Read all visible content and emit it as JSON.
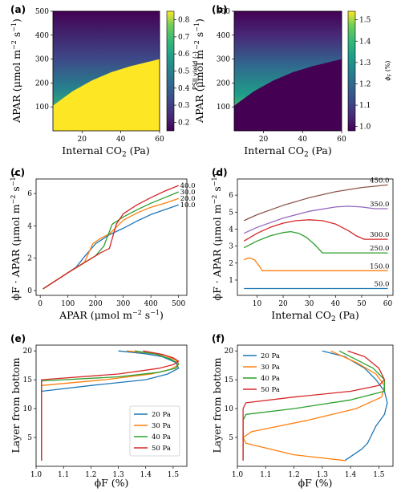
{
  "colors": {
    "c1": "#1f77b4",
    "c2": "#ff7f0e",
    "c3": "#2ca02c",
    "c4": "#d62728",
    "c5": "#9467bd",
    "c6": "#8c564b"
  },
  "chart_data": [
    {
      "id": "a",
      "panel_label": "(a)",
      "type": "heatmap",
      "xlabel": "Internal CO$_2$ (Pa)",
      "xlabel_text": "Internal CO",
      "xlabel_sub": "2",
      "xlabel_tail": " (Pa)",
      "ylabel_text": "APAR (μmol m",
      "ylim": [
        0,
        500
      ],
      "xlim": [
        5,
        60
      ],
      "xticks": [
        20,
        40,
        60
      ],
      "yticks": [
        100,
        200,
        300,
        400,
        500
      ],
      "colorbar": {
        "label": "PSII yield (-)",
        "min": 0.15,
        "max": 0.85,
        "ticks": [
          0.2,
          0.3,
          0.4,
          0.5,
          0.6,
          0.7,
          0.8
        ]
      },
      "boundary": {
        "co2": [
          5,
          15,
          25,
          35,
          45,
          60
        ],
        "apar": [
          105,
          165,
          210,
          245,
          270,
          300
        ]
      }
    },
    {
      "id": "b",
      "panel_label": "(b)",
      "type": "heatmap",
      "xlabel_text": "Internal CO",
      "xlabel_sub": "2",
      "xlabel_tail": " (Pa)",
      "ylabel_text": "APAR (μmol m",
      "ylim": [
        0,
        500
      ],
      "xlim": [
        5,
        60
      ],
      "xticks": [
        20,
        40,
        60
      ],
      "yticks": [
        100,
        200,
        300,
        400,
        500
      ],
      "colorbar": {
        "label": "ϕF (%)",
        "min": 0.98,
        "max": 1.54,
        "ticks": [
          1.0,
          1.1,
          1.2,
          1.3,
          1.4,
          1.5
        ]
      },
      "boundary": {
        "co2": [
          5,
          15,
          25,
          35,
          45,
          60
        ],
        "apar": [
          105,
          165,
          210,
          245,
          270,
          300
        ]
      }
    },
    {
      "id": "c",
      "panel_label": "(c)",
      "type": "line",
      "xlabel_text": "APAR (μmol m",
      "ylabel_text": "ϕF · APAR (μmol m",
      "xlim": [
        -15,
        530
      ],
      "ylim": [
        -0.3,
        6.9
      ],
      "xticks": [
        0,
        100,
        200,
        300,
        400,
        500
      ],
      "yticks": [
        0,
        2,
        4,
        6
      ],
      "series": [
        {
          "name": "10.0",
          "x": [
            10,
            100,
            130,
            160,
            200,
            250,
            300,
            350,
            400,
            450,
            500
          ],
          "y": [
            0.1,
            1.1,
            1.45,
            2.1,
            2.9,
            3.45,
            3.85,
            4.3,
            4.7,
            5.0,
            5.3
          ]
        },
        {
          "name": "20.0",
          "x": [
            10,
            100,
            160,
            190,
            220,
            250,
            300,
            350,
            400,
            450,
            500
          ],
          "y": [
            0.1,
            1.1,
            1.75,
            2.9,
            3.25,
            3.5,
            4.35,
            4.8,
            5.15,
            5.4,
            5.7
          ]
        },
        {
          "name": "30.0",
          "x": [
            10,
            100,
            200,
            230,
            260,
            300,
            350,
            400,
            450,
            500
          ],
          "y": [
            0.1,
            1.1,
            2.15,
            2.75,
            4.1,
            4.55,
            5.0,
            5.4,
            5.75,
            6.1
          ]
        },
        {
          "name": "40.0",
          "x": [
            10,
            100,
            220,
            250,
            275,
            300,
            350,
            400,
            450,
            500
          ],
          "y": [
            0.1,
            1.1,
            2.35,
            2.6,
            4.1,
            4.75,
            5.3,
            5.75,
            6.15,
            6.5
          ]
        }
      ]
    },
    {
      "id": "d",
      "panel_label": "(d)",
      "type": "line",
      "xlabel_text": "Internal CO",
      "xlabel_sub": "2",
      "xlabel_tail": " (Pa)",
      "ylabel_text": "ϕF · APAR (μmol m",
      "xlim": [
        2.5,
        62
      ],
      "ylim": [
        0.1,
        6.95
      ],
      "xticks": [
        10,
        20,
        30,
        40,
        50,
        60
      ],
      "yticks": [
        1,
        2,
        3,
        4,
        5,
        6
      ],
      "series": [
        {
          "name": "50.0",
          "x": [
            5,
            60
          ],
          "y": [
            0.5,
            0.5
          ]
        },
        {
          "name": "150.0",
          "x": [
            5,
            7,
            9,
            10,
            11,
            12,
            60
          ],
          "y": [
            2.2,
            2.3,
            2.2,
            2.0,
            1.8,
            1.55,
            1.55
          ]
        },
        {
          "name": "250.0",
          "x": [
            5,
            10,
            15,
            20,
            23,
            26,
            29,
            32,
            35,
            40,
            50,
            60
          ],
          "y": [
            2.9,
            3.3,
            3.6,
            3.8,
            3.85,
            3.75,
            3.5,
            3.1,
            2.6,
            2.6,
            2.6,
            2.6
          ]
        },
        {
          "name": "300.0",
          "x": [
            5,
            10,
            15,
            20,
            25,
            30,
            35,
            40,
            45,
            48,
            51,
            55,
            60
          ],
          "y": [
            3.3,
            3.75,
            4.1,
            4.35,
            4.5,
            4.55,
            4.5,
            4.3,
            3.9,
            3.6,
            3.4,
            3.4,
            3.4
          ]
        },
        {
          "name": "350.0",
          "x": [
            5,
            10,
            20,
            30,
            40,
            45,
            50,
            55,
            60
          ],
          "y": [
            3.75,
            4.1,
            4.65,
            5.05,
            5.3,
            5.35,
            5.3,
            5.2,
            5.2
          ]
        },
        {
          "name": "450.0",
          "x": [
            5,
            10,
            20,
            30,
            40,
            50,
            60
          ],
          "y": [
            4.5,
            4.85,
            5.4,
            5.85,
            6.2,
            6.45,
            6.6
          ]
        }
      ]
    },
    {
      "id": "e",
      "panel_label": "(e)",
      "type": "line",
      "xlabel_text": "ϕF (%)",
      "ylabel_text": "Layer from bottom",
      "xlim": [
        1.0,
        1.55
      ],
      "ylim": [
        0,
        21
      ],
      "xticks": [
        1.0,
        1.1,
        1.2,
        1.3,
        1.4,
        1.5
      ],
      "yticks": [
        5,
        10,
        15,
        20
      ],
      "legend": {
        "position": "lower-right"
      },
      "series": [
        {
          "name": "20 Pa",
          "x": [
            1.02,
            1.02,
            1.02,
            1.2,
            1.4,
            1.48,
            1.52,
            1.51,
            1.46,
            1.4,
            1.3
          ],
          "y": [
            1,
            12,
            13,
            14,
            15,
            16,
            17,
            18,
            19,
            19.5,
            20
          ]
        },
        {
          "name": "30 Pa",
          "x": [
            1.02,
            1.02,
            1.02,
            1.25,
            1.42,
            1.49,
            1.52,
            1.51,
            1.47,
            1.42,
            1.33
          ],
          "y": [
            1,
            13,
            14,
            15,
            16,
            16.8,
            17.6,
            18.4,
            19.2,
            19.6,
            20
          ]
        },
        {
          "name": "40 Pa",
          "x": [
            1.02,
            1.02,
            1.02,
            1.3,
            1.45,
            1.51,
            1.52,
            1.49,
            1.44,
            1.36
          ],
          "y": [
            1,
            14,
            14.8,
            15.5,
            16.3,
            17,
            17.8,
            18.6,
            19.4,
            20
          ]
        },
        {
          "name": "50 Pa",
          "x": [
            1.02,
            1.02,
            1.02,
            1.3,
            1.45,
            1.5,
            1.52,
            1.5,
            1.46,
            1.39
          ],
          "y": [
            1,
            14.8,
            15,
            16,
            17,
            17.6,
            18.2,
            18.8,
            19.4,
            20
          ]
        }
      ]
    },
    {
      "id": "f",
      "panel_label": "(f)",
      "type": "line",
      "xlabel_text": "ϕF (%)",
      "ylabel_text": "Layer from bottom",
      "xlim": [
        1.0,
        1.55
      ],
      "ylim": [
        0,
        21
      ],
      "xticks": [
        1.0,
        1.1,
        1.2,
        1.3,
        1.4,
        1.5
      ],
      "yticks": [
        5,
        10,
        15,
        20
      ],
      "legend": {
        "position": "upper-left"
      },
      "series": [
        {
          "name": "20 Pa",
          "x": [
            1.38,
            1.44,
            1.46,
            1.47,
            1.49,
            1.52,
            1.53,
            1.52,
            1.49,
            1.45,
            1.38,
            1.3
          ],
          "y": [
            1,
            3,
            4,
            5,
            7,
            9,
            11,
            13,
            15,
            17,
            19,
            20
          ]
        },
        {
          "name": "30 Pa",
          "x": [
            1.38,
            1.2,
            1.03,
            1.02,
            1.05,
            1.25,
            1.42,
            1.51,
            1.52,
            1.49,
            1.42,
            1.33
          ],
          "y": [
            1,
            2,
            4,
            5,
            6,
            8,
            10,
            12,
            14,
            16,
            18,
            20
          ]
        },
        {
          "name": "40 Pa",
          "x": [
            1.02,
            1.02,
            1.02,
            1.03,
            1.2,
            1.4,
            1.52,
            1.52,
            1.48,
            1.4,
            1.36
          ],
          "y": [
            1,
            5,
            8,
            9,
            10,
            11.5,
            13,
            15,
            17,
            19,
            20
          ]
        },
        {
          "name": "50 Pa",
          "x": [
            1.02,
            1.02,
            1.03,
            1.2,
            1.4,
            1.5,
            1.52,
            1.5,
            1.45,
            1.39
          ],
          "y": [
            1,
            10,
            11,
            12,
            13,
            14,
            15,
            17,
            19,
            20
          ]
        }
      ]
    }
  ]
}
